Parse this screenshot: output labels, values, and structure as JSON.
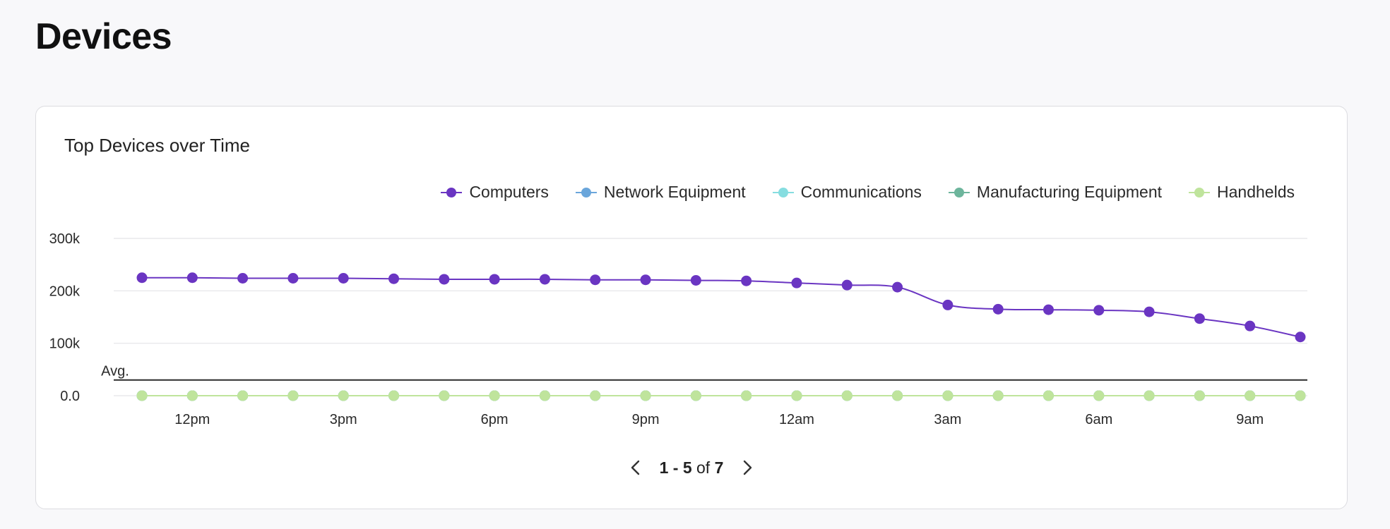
{
  "page": {
    "title": "Devices"
  },
  "card": {
    "title": "Top Devices over Time"
  },
  "legend": [
    {
      "label": "Computers",
      "color": "#6a35c2"
    },
    {
      "label": "Network Equipment",
      "color": "#6aa6db"
    },
    {
      "label": "Communications",
      "color": "#86dde0"
    },
    {
      "label": "Manufacturing Equipment",
      "color": "#6db59c"
    },
    {
      "label": "Handhelds",
      "color": "#bfe49c"
    }
  ],
  "avg_label": "Avg.",
  "pagination": {
    "range": "1 - 5",
    "of_word": "of",
    "total": "7",
    "prev_icon": "chevron-left-icon",
    "next_icon": "chevron-right-icon"
  },
  "chart_data": {
    "type": "line",
    "title": "Top Devices over Time",
    "xlabel": "",
    "ylabel": "",
    "ylim": [
      0,
      300000
    ],
    "y_ticks": [
      {
        "value": 0,
        "label": "0.0"
      },
      {
        "value": 100000,
        "label": "100k"
      },
      {
        "value": 200000,
        "label": "200k"
      },
      {
        "value": 300000,
        "label": "300k"
      }
    ],
    "x_tick_labels": [
      "12pm",
      "3pm",
      "6pm",
      "9pm",
      "12am",
      "3am",
      "6am",
      "9am"
    ],
    "x_tick_indices": [
      1,
      4,
      7,
      10,
      13,
      16,
      19,
      22
    ],
    "average": 30000,
    "grid": true,
    "legend_position": "top-right",
    "series": [
      {
        "name": "Computers",
        "color": "#6a35c2",
        "values": [
          225000,
          225000,
          224000,
          224000,
          224000,
          223000,
          222000,
          222000,
          222000,
          221000,
          221000,
          220000,
          219000,
          215000,
          211000,
          207000,
          173000,
          165000,
          164000,
          163000,
          160000,
          147000,
          133000,
          112000
        ]
      },
      {
        "name": "Network Equipment",
        "color": "#6aa6db",
        "values": [
          0,
          0,
          0,
          0,
          0,
          0,
          0,
          0,
          0,
          0,
          0,
          0,
          0,
          0,
          0,
          0,
          0,
          0,
          0,
          0,
          0,
          0,
          0,
          0
        ]
      },
      {
        "name": "Communications",
        "color": "#86dde0",
        "values": [
          0,
          0,
          0,
          0,
          0,
          0,
          0,
          0,
          0,
          0,
          0,
          0,
          0,
          0,
          0,
          0,
          0,
          0,
          0,
          0,
          0,
          0,
          0,
          0
        ]
      },
      {
        "name": "Manufacturing Equipment",
        "color": "#6db59c",
        "values": [
          0,
          0,
          0,
          0,
          0,
          0,
          0,
          0,
          0,
          0,
          0,
          0,
          0,
          0,
          0,
          0,
          0,
          0,
          0,
          0,
          0,
          0,
          0,
          0
        ]
      },
      {
        "name": "Handhelds",
        "color": "#bfe49c",
        "values": [
          0,
          0,
          0,
          0,
          0,
          0,
          0,
          0,
          0,
          0,
          0,
          0,
          0,
          0,
          0,
          0,
          0,
          0,
          0,
          0,
          0,
          0,
          0,
          0
        ]
      }
    ]
  }
}
